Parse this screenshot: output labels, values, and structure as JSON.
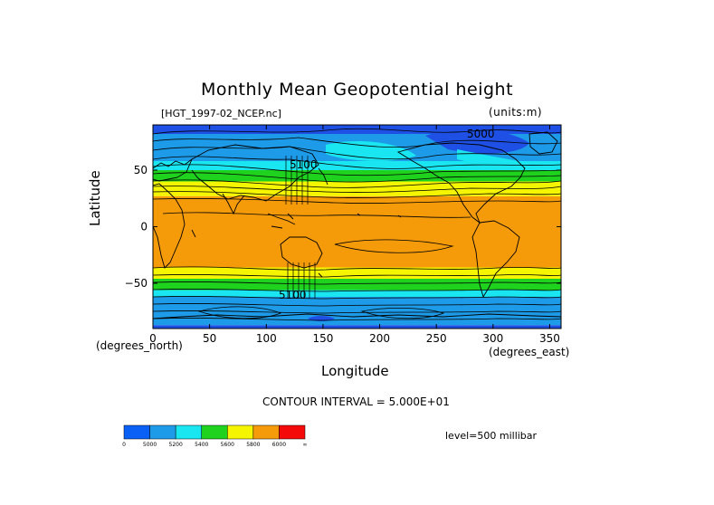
{
  "chart_data": {
    "type": "heatmap",
    "title": "Monthly Mean Geopotential height",
    "file_label": "[HGT_1997-02_NCEP.nc]",
    "units_label": "(units:m)",
    "xlabel": "Longitude",
    "ylabel": "Latitude",
    "x_unit_label": "(degrees_east)",
    "y_unit_label": "(degrees_north)",
    "xlim": [
      0,
      360
    ],
    "ylim": [
      -90,
      90
    ],
    "x_ticks": [
      0,
      50,
      100,
      150,
      200,
      250,
      300,
      350
    ],
    "y_ticks": [
      50,
      0,
      -50
    ],
    "contour_interval_text": "CONTOUR INTERVAL = 5.000E+01",
    "level_text": "level=500 millibar",
    "contour_labels": [
      "5100",
      "5100",
      "5000"
    ],
    "bands": [
      {
        "color": "#1e50e6",
        "lat": [
          -90,
          -87
        ]
      },
      {
        "color": "#1e9be8",
        "lat": [
          -87,
          -62
        ]
      },
      {
        "color": "#19e6f0",
        "lat": [
          -62,
          -56
        ]
      },
      {
        "color": "#1ed21e",
        "lat": [
          -56,
          -46
        ]
      },
      {
        "color": "#f5f500",
        "lat": [
          -46,
          -36
        ]
      },
      {
        "color": "#f59b0a",
        "lat": [
          -36,
          27
        ]
      },
      {
        "color": "#f5f500",
        "lat": [
          27,
          40
        ]
      },
      {
        "color": "#1ed21e",
        "lat": [
          40,
          50
        ]
      },
      {
        "color": "#19e6f0",
        "lat": [
          50,
          58
        ]
      },
      {
        "color": "#1e9be8",
        "lat": [
          58,
          82
        ]
      },
      {
        "color": "#1e50e6",
        "lat": [
          82,
          90
        ]
      }
    ],
    "colorbar": {
      "colors": [
        "#0a5ff5",
        "#1e9be8",
        "#19e6f0",
        "#1ed21e",
        "#f5f500",
        "#f59b0a",
        "#f50a0a"
      ],
      "labels": [
        "0",
        "5000",
        "5200",
        "5400",
        "5600",
        "5800",
        "6000",
        "∞"
      ]
    }
  }
}
